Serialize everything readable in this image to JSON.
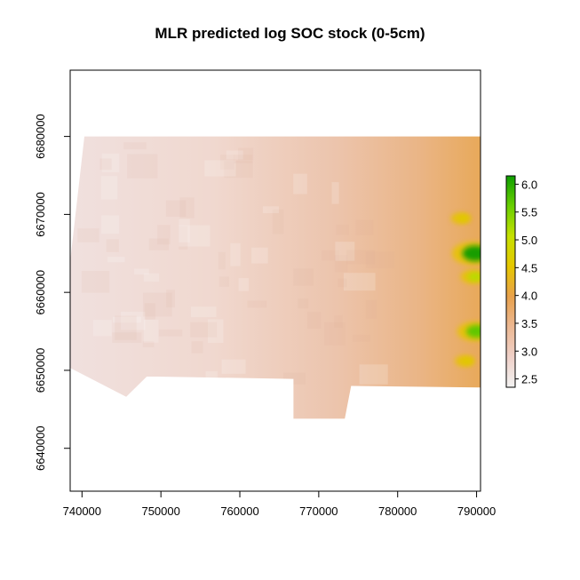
{
  "title": "MLR predicted log SOC stock (0-5cm)",
  "map": {
    "x_ticks": [
      740000,
      750000,
      760000,
      770000,
      780000,
      790000
    ],
    "x_tick_labels": [
      "740000",
      "750000",
      "760000",
      "770000",
      "780000",
      "790000"
    ],
    "y_ticks": [
      6640000,
      6650000,
      6660000,
      6670000,
      6680000
    ],
    "y_tick_labels": [
      "6640000",
      "6650000",
      "6660000",
      "6670000",
      "6680000"
    ],
    "x_range": [
      738500,
      790500
    ],
    "y_range": [
      6634500,
      6688500
    ],
    "outline": [
      [
        740300,
        6680000
      ],
      [
        790500,
        6680000
      ],
      [
        790500,
        6647800
      ],
      [
        774100,
        6648000
      ],
      [
        773300,
        6643800
      ],
      [
        766800,
        6643800
      ],
      [
        766800,
        6648900
      ],
      [
        749600,
        6649200
      ],
      [
        748200,
        6649200
      ],
      [
        745600,
        6646600
      ],
      [
        738500,
        6650300
      ],
      [
        738500,
        6664000
      ]
    ],
    "gradient_stops": [
      {
        "offset": 0.0,
        "color": "#f0e0de"
      },
      {
        "offset": 0.35,
        "color": "#f0d8cf"
      },
      {
        "offset": 0.65,
        "color": "#ecc4ac"
      },
      {
        "offset": 0.85,
        "color": "#eab586"
      },
      {
        "offset": 1.0,
        "color": "#e8a95a"
      }
    ],
    "hotspots": [
      {
        "x": 789500,
        "y": 6665000,
        "value": 6.0
      },
      {
        "x": 789500,
        "y": 6662000,
        "value": 4.8
      },
      {
        "x": 789700,
        "y": 6655000,
        "value": 5.5
      },
      {
        "x": 788500,
        "y": 6651200,
        "value": 4.5
      },
      {
        "x": 788000,
        "y": 6669500,
        "value": 4.5
      }
    ]
  },
  "legend": {
    "range": [
      2.35,
      6.15
    ],
    "tick_values": [
      2.5,
      3.0,
      3.5,
      4.0,
      4.5,
      5.0,
      5.5,
      6.0
    ],
    "tick_labels": [
      "2.5",
      "3.0",
      "3.5",
      "4.0",
      "4.5",
      "5.0",
      "5.5",
      "6.0"
    ],
    "colors": [
      "#f2f2f2",
      "#efd0c8",
      "#ecb893",
      "#e8a14c",
      "#e6c700",
      "#c6e000",
      "#69cf00",
      "#0e9e00"
    ]
  }
}
